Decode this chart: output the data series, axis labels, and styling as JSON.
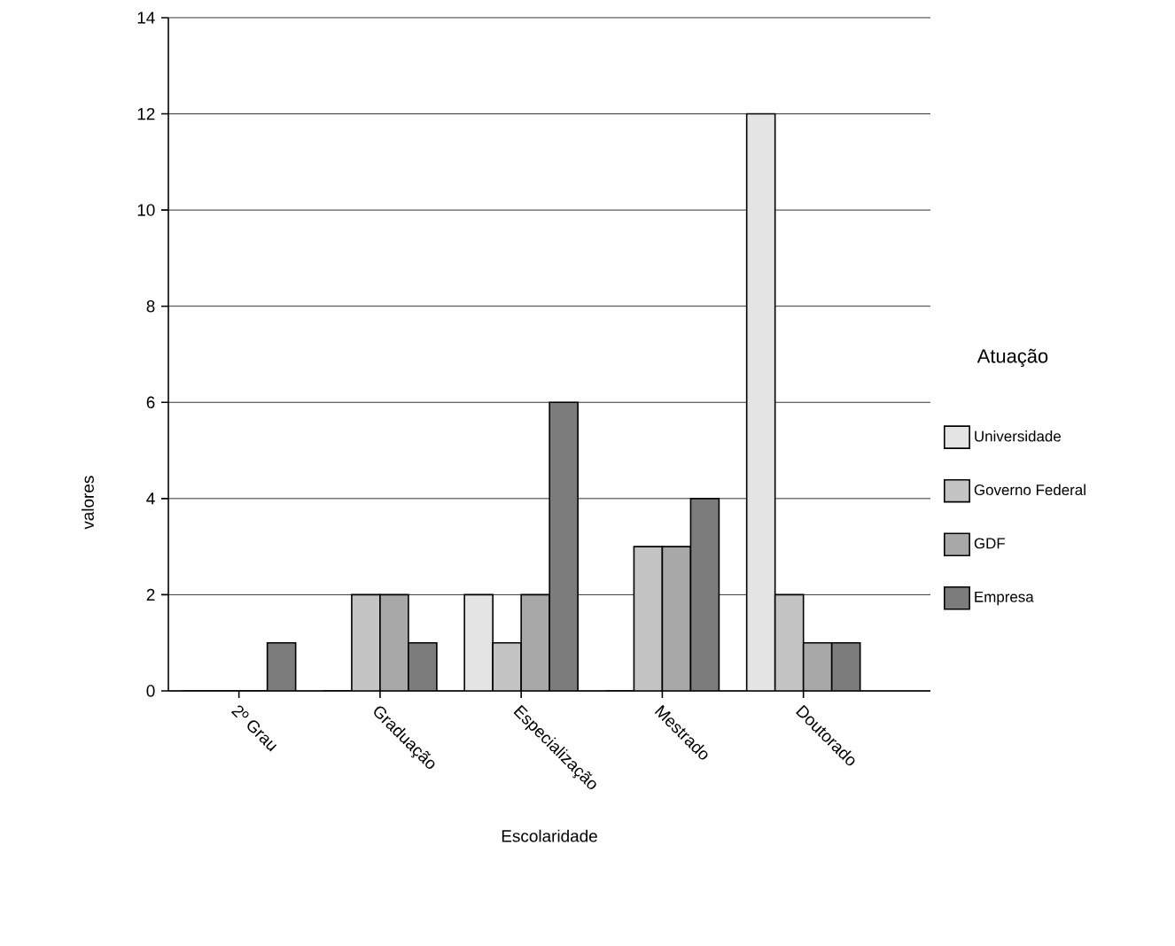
{
  "chart_data": {
    "type": "bar",
    "xlabel": "Escolaridade",
    "ylabel": "valores",
    "legend_title": "Atuação",
    "categories": [
      "2º Grau",
      "Graduação",
      "Especialização",
      "Mestrado",
      "Doutorado"
    ],
    "series": [
      {
        "name": "Universidade",
        "color": "#e4e4e4",
        "values": [
          0,
          0,
          2,
          0,
          12
        ]
      },
      {
        "name": "Governo Federal",
        "color": "#c4c4c4",
        "values": [
          0,
          2,
          1,
          3,
          2
        ]
      },
      {
        "name": "GDF",
        "color": "#a8a8a8",
        "values": [
          0,
          2,
          2,
          3,
          1
        ]
      },
      {
        "name": "Empresa",
        "color": "#7c7c7c",
        "values": [
          1,
          1,
          6,
          4,
          1
        ]
      }
    ],
    "ylim": [
      0,
      14
    ],
    "yticks": [
      0,
      2,
      4,
      6,
      8,
      10,
      12,
      14
    ],
    "grid": "y",
    "legend": "right"
  }
}
